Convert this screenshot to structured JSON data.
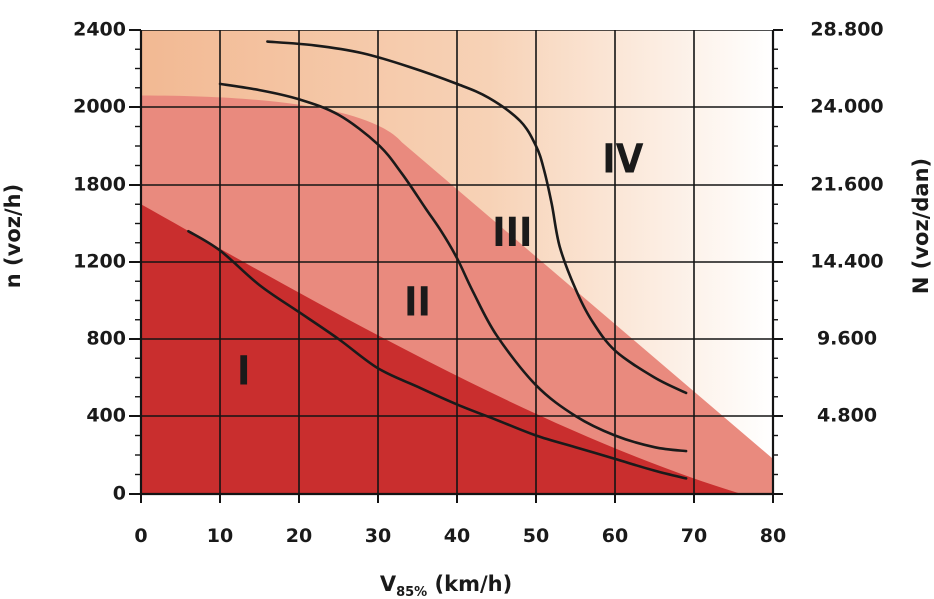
{
  "chart_data": {
    "type": "line",
    "xlabel": "V85% (km/h)",
    "xlabel_main": "V",
    "xlabel_sub": "85%",
    "xlabel_tail": " (km/h)",
    "ylabel": "n (voz/h)",
    "y2label": "N (voz/dan)",
    "xlim": [
      0,
      80
    ],
    "ylim": [
      0,
      2400
    ],
    "grid": true,
    "x_ticks": [
      {
        "value": 0,
        "label": "0"
      },
      {
        "value": 10,
        "label": "10"
      },
      {
        "value": 20,
        "label": "20"
      },
      {
        "value": 30,
        "label": "30"
      },
      {
        "value": 40,
        "label": "40"
      },
      {
        "value": 50,
        "label": "50"
      },
      {
        "value": 60,
        "label": "60"
      },
      {
        "value": 70,
        "label": "70"
      },
      {
        "value": 80,
        "label": "80"
      }
    ],
    "y_ticks": [
      {
        "level": 0,
        "label": "0"
      },
      {
        "level": 1,
        "label": "400"
      },
      {
        "level": 2,
        "label": "800"
      },
      {
        "level": 3,
        "label": "1200"
      },
      {
        "level": 4,
        "label": "1800"
      },
      {
        "level": 5,
        "label": "2000"
      },
      {
        "level": 6,
        "label": "2400"
      }
    ],
    "y2_ticks": [
      {
        "level": 1,
        "label": "4.800"
      },
      {
        "level": 2,
        "label": "9.600"
      },
      {
        "level": 3,
        "label": "14.400"
      },
      {
        "level": 4,
        "label": "21.600"
      },
      {
        "level": 5,
        "label": "24.000"
      },
      {
        "level": 6,
        "label": "28.800"
      }
    ],
    "zones": [
      {
        "label": "I",
        "x": 13,
        "level": 1.55,
        "color": "#c92e2e"
      },
      {
        "label": "II",
        "x": 35,
        "level": 2.45,
        "color": "#e98a7e"
      },
      {
        "label": "III",
        "x": 47,
        "level": 3.35,
        "color": "#f4c2a2"
      },
      {
        "label": "IV",
        "x": 61,
        "level": 4.3,
        "color": "#fbe6d5"
      }
    ],
    "series": [
      {
        "points": [
          [
            6,
            3.4
          ],
          [
            10,
            3.15
          ],
          [
            15,
            2.7
          ],
          [
            20,
            2.35
          ],
          [
            25,
            2.0
          ],
          [
            30,
            1.62
          ],
          [
            35,
            1.38
          ],
          [
            40,
            1.15
          ],
          [
            45,
            0.95
          ],
          [
            50,
            0.75
          ],
          [
            55,
            0.6
          ],
          [
            60,
            0.45
          ],
          [
            65,
            0.3
          ],
          [
            69,
            0.2
          ]
        ]
      },
      {
        "points": [
          [
            10,
            5.3
          ],
          [
            15,
            5.22
          ],
          [
            20,
            5.1
          ],
          [
            25,
            4.9
          ],
          [
            30,
            4.52
          ],
          [
            33,
            4.15
          ],
          [
            36,
            3.7
          ],
          [
            38,
            3.4
          ],
          [
            40,
            3.05
          ],
          [
            42,
            2.62
          ],
          [
            45,
            2.05
          ],
          [
            50,
            1.4
          ],
          [
            55,
            1.0
          ],
          [
            60,
            0.75
          ],
          [
            65,
            0.6
          ],
          [
            69,
            0.55
          ]
        ]
      },
      {
        "points": [
          [
            16,
            5.85
          ],
          [
            22,
            5.8
          ],
          [
            28,
            5.7
          ],
          [
            34,
            5.52
          ],
          [
            40,
            5.3
          ],
          [
            44,
            5.12
          ],
          [
            48,
            4.82
          ],
          [
            50,
            4.5
          ],
          [
            51,
            4.2
          ],
          [
            52,
            3.75
          ],
          [
            53,
            3.2
          ],
          [
            55,
            2.65
          ],
          [
            57,
            2.25
          ],
          [
            60,
            1.85
          ],
          [
            65,
            1.5
          ],
          [
            69,
            1.3
          ]
        ]
      }
    ]
  }
}
